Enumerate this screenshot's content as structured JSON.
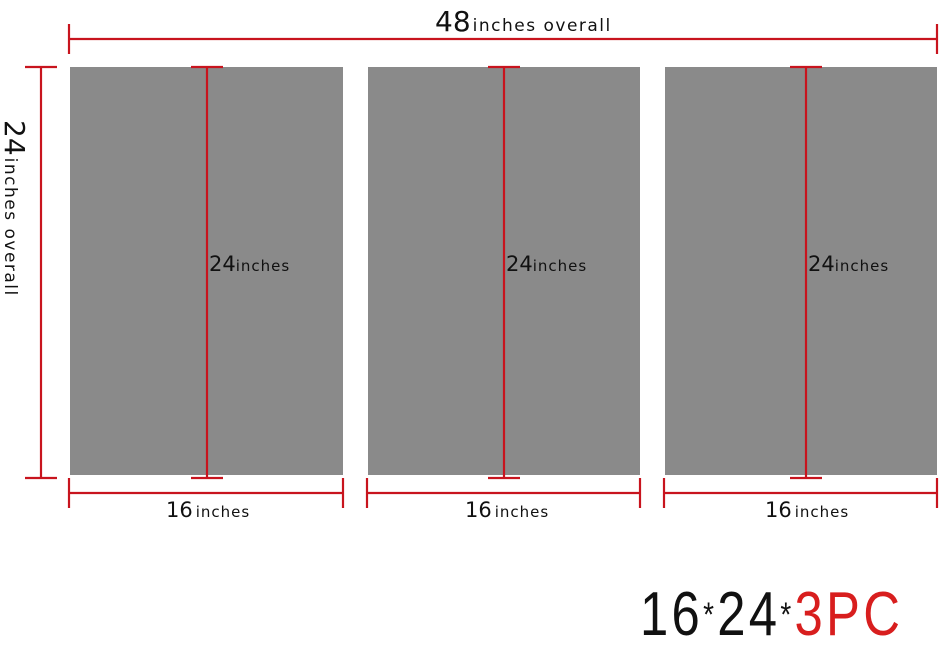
{
  "overall_width": {
    "number": "48",
    "unit": "inches overall"
  },
  "overall_height": {
    "number": "24",
    "unit": "inches overall"
  },
  "panels": [
    {
      "height_number": "24",
      "height_unit": "inches",
      "width_number": "16",
      "width_unit": "inches"
    },
    {
      "height_number": "24",
      "height_unit": "inches",
      "width_number": "16",
      "width_unit": "inches"
    },
    {
      "height_number": "24",
      "height_unit": "inches",
      "width_number": "16",
      "width_unit": "inches"
    }
  ],
  "spec": {
    "width": "16",
    "sep1": "*",
    "height": "24",
    "sep2": "*",
    "count": "3PC"
  },
  "colors": {
    "panel": "#8a8a8a",
    "dimension_line": "#c8141e",
    "accent": "#d81e1e"
  }
}
